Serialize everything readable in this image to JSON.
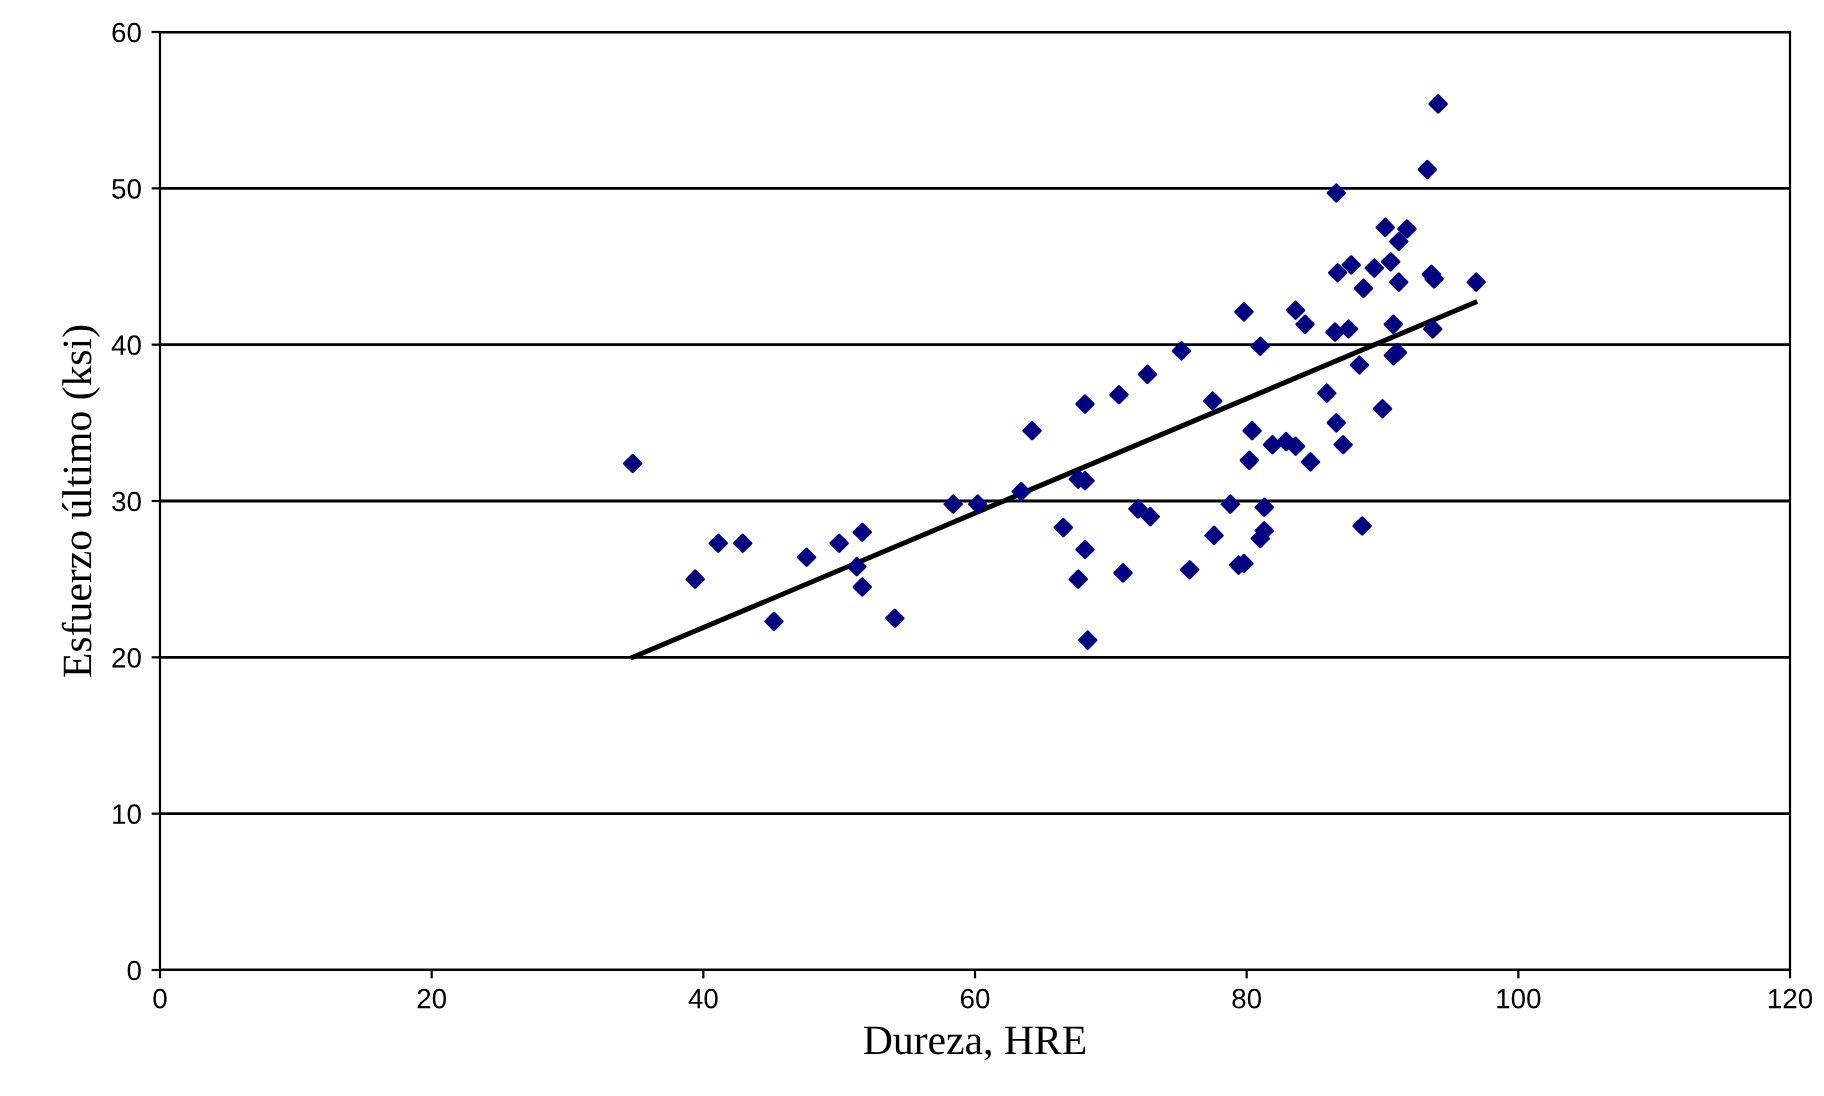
{
  "chart_data": {
    "type": "scatter",
    "xlabel": "Dureza, HRE",
    "ylabel": "Esfuerzo último (ksi)",
    "xlim": [
      0,
      120
    ],
    "ylim": [
      0,
      60
    ],
    "xticks": [
      0,
      20,
      40,
      60,
      80,
      100,
      120
    ],
    "yticks": [
      0,
      10,
      20,
      30,
      40,
      50,
      60
    ],
    "grid": "y",
    "legend": false,
    "marker": "diamond",
    "series": [
      {
        "color": "#000080",
        "x": [
          34.8,
          39.4,
          41.1,
          42.9,
          45.2,
          47.6,
          50.0,
          51.7,
          51.3,
          51.7,
          54.1,
          58.4,
          60.2,
          63.4,
          64.2,
          67.6,
          68.1,
          66.5,
          68.1,
          67.6,
          68.3,
          70.9,
          72.0,
          72.9,
          68.1,
          70.6,
          75.8,
          77.6,
          78.8,
          79.4,
          77.5,
          72.7,
          75.2,
          81.0,
          88.3,
          90.8,
          91.1,
          85.9,
          90.0,
          86.6,
          87.1,
          80.4,
          80.2,
          81.9,
          82.9,
          83.6,
          84.7,
          81.3,
          81.3,
          81.0,
          79.8,
          88.5,
          94.1,
          93.3,
          86.6,
          90.2,
          91.8,
          91.2,
          90.6,
          89.4,
          87.7,
          86.7,
          88.6,
          91.2,
          93.6,
          93.8,
          96.9,
          79.8,
          83.6,
          84.3,
          86.5,
          87.5,
          90.8,
          93.7
        ],
        "values": [
          32.4,
          25.0,
          27.3,
          27.3,
          22.3,
          26.4,
          27.3,
          28.0,
          25.8,
          24.5,
          22.5,
          29.8,
          29.8,
          30.6,
          34.5,
          31.4,
          31.3,
          28.3,
          26.9,
          25.0,
          21.1,
          25.4,
          29.5,
          29.0,
          36.2,
          36.8,
          25.6,
          27.8,
          29.8,
          25.9,
          36.4,
          38.1,
          39.6,
          39.9,
          38.7,
          39.3,
          39.5,
          36.9,
          35.9,
          35.0,
          33.6,
          34.5,
          32.6,
          33.6,
          33.8,
          33.5,
          32.5,
          29.6,
          28.1,
          27.6,
          26.0,
          28.4,
          55.4,
          51.2,
          49.7,
          47.5,
          47.4,
          46.6,
          45.3,
          44.9,
          45.1,
          44.6,
          43.6,
          44.0,
          44.5,
          44.2,
          44.0,
          42.1,
          42.2,
          41.3,
          40.8,
          41.0,
          41.3,
          41.0
        ]
      },
      {
        "type": "line",
        "color": "#000000",
        "marker": "none",
        "x": [
          34.8,
          96.8
        ],
        "values": [
          20.0,
          42.7
        ]
      }
    ]
  }
}
